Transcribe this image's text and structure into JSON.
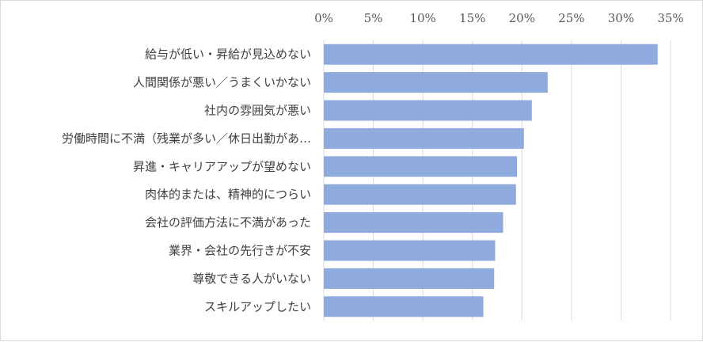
{
  "chart_data": {
    "type": "bar",
    "orientation": "horizontal",
    "axis_position": "top",
    "grid": true,
    "legend": "none",
    "xlim": [
      0,
      35
    ],
    "ticks": [
      0,
      5,
      10,
      15,
      20,
      25,
      30,
      35
    ],
    "tick_labels": [
      "0%",
      "5%",
      "10%",
      "15%",
      "20%",
      "25%",
      "30%",
      "35%"
    ],
    "categories": [
      "給与が低い・昇給が見込めない",
      "人間関係が悪い／うまくいかない",
      "社内の雰囲気が悪い",
      "労働時間に不満（残業が多い／休日出勤があ…",
      "昇進・キャリアアップが望めない",
      "肉体的または、精神的につらい",
      "会社の評価方法に不満があった",
      "業界・会社の先行きが不安",
      "尊敬できる人がいない",
      "スキルアップしたい"
    ],
    "values": [
      33.7,
      22.6,
      21.0,
      20.2,
      19.5,
      19.4,
      18.1,
      17.3,
      17.2,
      16.1
    ],
    "bar_color": "#8faadc",
    "grid_color": "#d9d9d9"
  }
}
